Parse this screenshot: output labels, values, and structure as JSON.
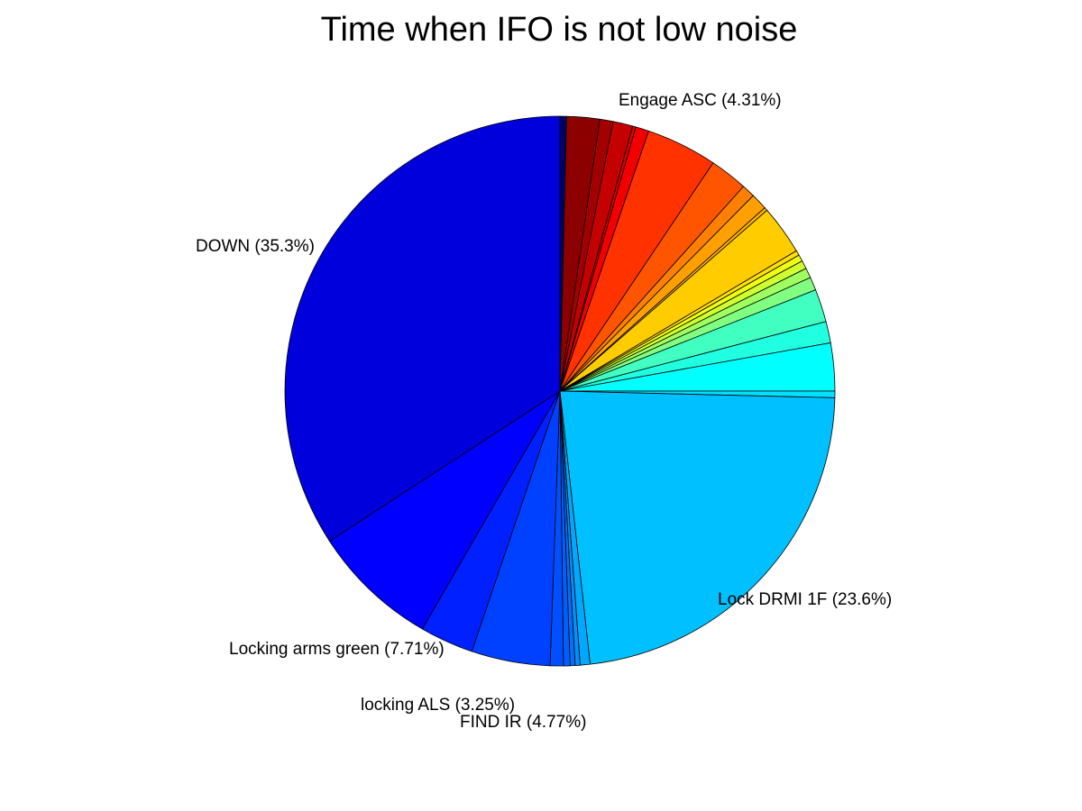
{
  "chart_data": {
    "type": "pie",
    "title": "Time when IFO is not low noise",
    "start": "top",
    "direction": "clockwise",
    "slices": [
      {
        "value": 0.4,
        "color": "#000066"
      },
      {
        "value": 2.0,
        "color": "#8c0000"
      },
      {
        "value": 0.8,
        "color": "#a30000"
      },
      {
        "value": 1.2,
        "color": "#c40000"
      },
      {
        "value": 0.2,
        "color": "#d90000"
      },
      {
        "value": 0.8,
        "color": "#f20000"
      },
      {
        "value": 4.31,
        "color": "#ff3200",
        "label": "Engage ASC (4.31%)"
      },
      {
        "value": 2.3,
        "color": "#ff5500"
      },
      {
        "value": 0.8,
        "color": "#ff8000"
      },
      {
        "value": 1.0,
        "color": "#ffa000"
      },
      {
        "value": 0.2,
        "color": "#ffb400"
      },
      {
        "value": 3.0,
        "color": "#ffcc00"
      },
      {
        "value": 0.3,
        "color": "#ffe000"
      },
      {
        "value": 0.4,
        "color": "#f0ff10"
      },
      {
        "value": 0.5,
        "color": "#d0ff30"
      },
      {
        "value": 0.6,
        "color": "#a0ff60"
      },
      {
        "value": 0.8,
        "color": "#80ff80"
      },
      {
        "value": 2.0,
        "color": "#40ffc0"
      },
      {
        "value": 1.3,
        "color": "#20ffe0"
      },
      {
        "value": 2.9,
        "color": "#00ffff"
      },
      {
        "value": 0.4,
        "color": "#00e0ff"
      },
      {
        "value": 23.6,
        "color": "#00c0ff",
        "label": "Lock DRMI 1F (23.6%)"
      },
      {
        "value": 0.6,
        "color": "#00a8ff"
      },
      {
        "value": 0.3,
        "color": "#0090ff"
      },
      {
        "value": 0.3,
        "color": "#0070ff"
      },
      {
        "value": 0.4,
        "color": "#0060ff"
      },
      {
        "value": 0.8,
        "color": "#0050ff"
      },
      {
        "value": 4.77,
        "color": "#0040ff",
        "label": "FIND IR (4.77%)"
      },
      {
        "value": 3.25,
        "color": "#0020ff",
        "label": "locking ALS (3.25%)"
      },
      {
        "value": 7.71,
        "color": "#0000ff",
        "label": "Locking arms green (7.71%)"
      },
      {
        "value": 35.3,
        "color": "#0000dd",
        "label": "DOWN (35.3%)"
      }
    ]
  }
}
